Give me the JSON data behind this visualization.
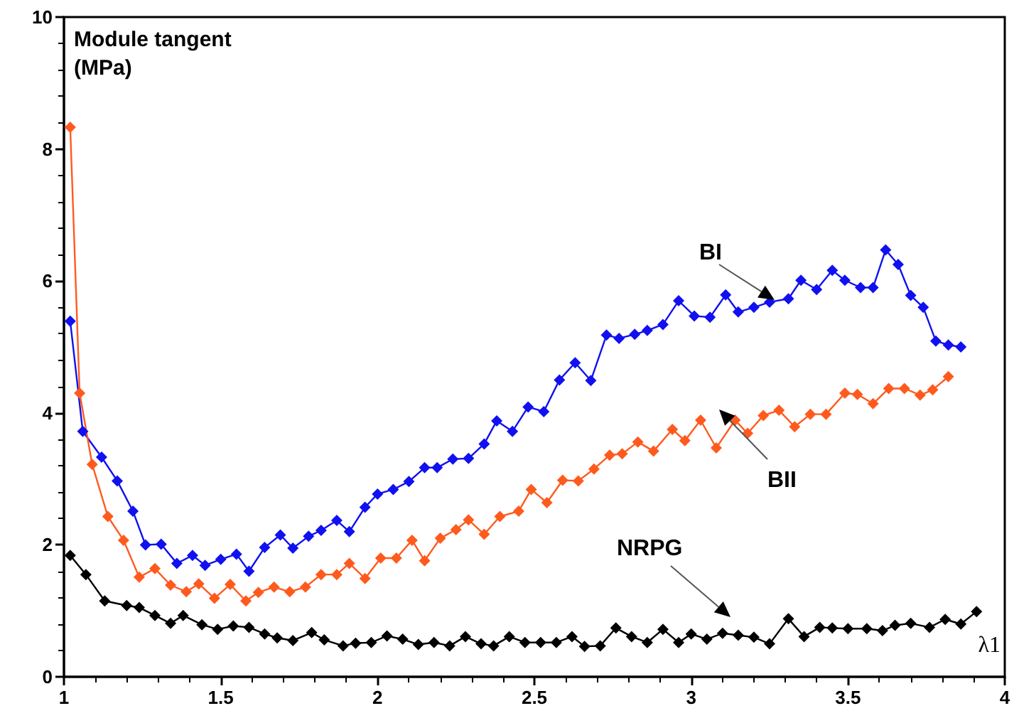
{
  "chart_data": {
    "type": "line",
    "ylabel": "Module tangent\n(MPa)",
    "xlabel": "λ1",
    "xlim": [
      1,
      4
    ],
    "xticks": [
      1,
      1.5,
      2,
      2.5,
      3,
      3.5,
      4
    ],
    "ylim": [
      0,
      10
    ],
    "yticks": [
      0,
      2,
      4,
      6,
      8,
      10
    ],
    "grid": false,
    "legend": false,
    "marker": "diamond",
    "line_style": "solid",
    "series": [
      {
        "name": "BI",
        "color": "#1010f0",
        "x": [
          1.02,
          1.06,
          1.12,
          1.17,
          1.22,
          1.26,
          1.31,
          1.36,
          1.41,
          1.45,
          1.5,
          1.55,
          1.59,
          1.64,
          1.69,
          1.73,
          1.78,
          1.82,
          1.87,
          1.91,
          1.96,
          2.0,
          2.05,
          2.1,
          2.15,
          2.19,
          2.24,
          2.29,
          2.34,
          2.38,
          2.43,
          2.48,
          2.53,
          2.58,
          2.63,
          2.68,
          2.73,
          2.77,
          2.82,
          2.86,
          2.91,
          2.96,
          3.01,
          3.06,
          3.11,
          3.15,
          3.2,
          3.25,
          3.31,
          3.35,
          3.4,
          3.45,
          3.49,
          3.54,
          3.58,
          3.62,
          3.66,
          3.7,
          3.74,
          3.78,
          3.82,
          3.86
        ],
        "values": [
          5.39,
          3.72,
          3.33,
          2.97,
          2.51,
          2.0,
          2.01,
          1.72,
          1.84,
          1.69,
          1.78,
          1.86,
          1.6,
          1.96,
          2.15,
          1.95,
          2.13,
          2.22,
          2.37,
          2.2,
          2.57,
          2.77,
          2.84,
          2.96,
          3.17,
          3.17,
          3.3,
          3.31,
          3.53,
          3.88,
          3.72,
          4.09,
          4.02,
          4.5,
          4.76,
          4.49,
          5.18,
          5.13,
          5.19,
          5.25,
          5.34,
          5.7,
          5.47,
          5.45,
          5.79,
          5.53,
          5.6,
          5.68,
          5.73,
          6.01,
          5.87,
          6.16,
          6.01,
          5.9,
          5.9,
          6.47,
          6.25,
          5.78,
          5.6,
          5.09,
          5.03,
          5.0
        ]
      },
      {
        "name": "BII",
        "color": "#ff5a1e",
        "x": [
          1.02,
          1.05,
          1.09,
          1.14,
          1.19,
          1.24,
          1.29,
          1.34,
          1.39,
          1.43,
          1.48,
          1.53,
          1.58,
          1.62,
          1.67,
          1.72,
          1.77,
          1.82,
          1.87,
          1.91,
          1.96,
          2.01,
          2.06,
          2.11,
          2.15,
          2.2,
          2.25,
          2.29,
          2.34,
          2.39,
          2.45,
          2.49,
          2.54,
          2.59,
          2.64,
          2.69,
          2.74,
          2.78,
          2.83,
          2.88,
          2.94,
          2.98,
          3.03,
          3.08,
          3.14,
          3.18,
          3.23,
          3.28,
          3.33,
          3.38,
          3.43,
          3.49,
          3.53,
          3.58,
          3.63,
          3.68,
          3.73,
          3.77,
          3.82
        ],
        "values": [
          8.33,
          4.3,
          3.22,
          2.43,
          2.07,
          1.51,
          1.64,
          1.39,
          1.29,
          1.41,
          1.19,
          1.4,
          1.15,
          1.28,
          1.36,
          1.29,
          1.36,
          1.55,
          1.55,
          1.72,
          1.49,
          1.8,
          1.8,
          2.07,
          1.76,
          2.1,
          2.23,
          2.38,
          2.16,
          2.43,
          2.51,
          2.84,
          2.64,
          2.98,
          2.97,
          3.15,
          3.36,
          3.38,
          3.56,
          3.42,
          3.75,
          3.58,
          3.89,
          3.47,
          3.89,
          3.69,
          3.96,
          4.04,
          3.79,
          3.98,
          3.98,
          4.3,
          4.28,
          4.14,
          4.37,
          4.37,
          4.27,
          4.35,
          4.55
        ]
      },
      {
        "name": "NRPG",
        "color": "#000000",
        "x": [
          1.02,
          1.07,
          1.13,
          1.2,
          1.24,
          1.29,
          1.34,
          1.38,
          1.44,
          1.49,
          1.54,
          1.59,
          1.64,
          1.68,
          1.73,
          1.79,
          1.83,
          1.89,
          1.93,
          1.98,
          2.03,
          2.08,
          2.13,
          2.18,
          2.23,
          2.28,
          2.33,
          2.37,
          2.42,
          2.47,
          2.52,
          2.57,
          2.62,
          2.66,
          2.71,
          2.76,
          2.81,
          2.86,
          2.91,
          2.96,
          3.0,
          3.05,
          3.1,
          3.15,
          3.2,
          3.25,
          3.31,
          3.36,
          3.41,
          3.45,
          3.5,
          3.56,
          3.61,
          3.65,
          3.7,
          3.76,
          3.81,
          3.86,
          3.91
        ],
        "values": [
          1.84,
          1.55,
          1.15,
          1.08,
          1.05,
          0.93,
          0.81,
          0.93,
          0.79,
          0.72,
          0.77,
          0.75,
          0.65,
          0.59,
          0.55,
          0.67,
          0.56,
          0.47,
          0.51,
          0.52,
          0.62,
          0.57,
          0.49,
          0.52,
          0.47,
          0.61,
          0.5,
          0.47,
          0.61,
          0.52,
          0.52,
          0.52,
          0.61,
          0.46,
          0.47,
          0.74,
          0.61,
          0.52,
          0.72,
          0.52,
          0.65,
          0.57,
          0.66,
          0.63,
          0.6,
          0.5,
          0.88,
          0.61,
          0.75,
          0.74,
          0.73,
          0.73,
          0.7,
          0.78,
          0.81,
          0.75,
          0.87,
          0.8,
          0.99
        ]
      }
    ]
  }
}
